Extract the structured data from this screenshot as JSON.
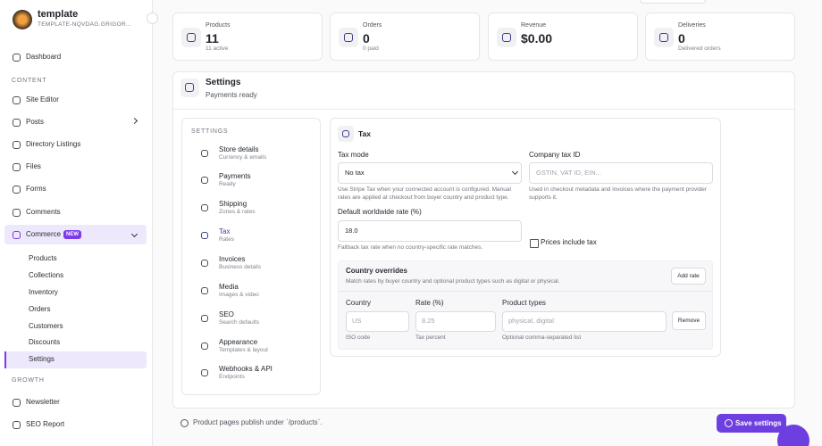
{
  "sidebar": {
    "site_name": "template",
    "site_slug": "TEMPLATE-NQVDAG.GRIGOR...",
    "dashboard": "Dashboard",
    "content_heading": "CONTENT",
    "content_items": [
      "Site Editor",
      "Posts",
      "Directory Listings",
      "Files",
      "Forms",
      "Comments"
    ],
    "commerce": "Commerce",
    "commerce_badge": "NEW",
    "commerce_items": [
      "Products",
      "Collections",
      "Inventory",
      "Orders",
      "Customers",
      "Discounts",
      "Settings"
    ],
    "growth_heading": "GROWTH",
    "growth_items": [
      "Newsletter",
      "SEO Report"
    ]
  },
  "stats": [
    {
      "label": "Products",
      "value": "11",
      "note": "11 active"
    },
    {
      "label": "Orders",
      "value": "0",
      "note": "0 paid"
    },
    {
      "label": "Revenue",
      "value": "$0.00"
    },
    {
      "label": "Deliveries",
      "value": "0",
      "note": "Delivered orders"
    }
  ],
  "settings": {
    "title": "Settings",
    "status": "Payments ready",
    "nav_heading": "SETTINGS",
    "nav": [
      {
        "label": "Store details",
        "sub": "Currency & emails"
      },
      {
        "label": "Payments",
        "sub": "Ready"
      },
      {
        "label": "Shipping",
        "sub": "Zones & rates"
      },
      {
        "label": "Tax",
        "sub": "Rates"
      },
      {
        "label": "Invoices",
        "sub": "Business details"
      },
      {
        "label": "Media",
        "sub": "Images & video"
      },
      {
        "label": "SEO",
        "sub": "Search defaults"
      },
      {
        "label": "Appearance",
        "sub": "Templates & layout"
      },
      {
        "label": "Webhooks & API",
        "sub": "Endpoints"
      }
    ]
  },
  "tax": {
    "title": "Tax",
    "tax_mode_label": "Tax mode",
    "tax_mode_value": "No tax",
    "tax_mode_help": "Use Stripe Tax when your connected account is configured. Manual rates are applied at checkout from buyer country and product type.",
    "company_label": "Company tax ID",
    "company_placeholder": "GSTIN, VAT ID, EIN...",
    "company_help": "Used in checkout metadata and invoices where the payment provider supports it.",
    "rate_label": "Default worldwide rate (%)",
    "rate_value": "18.0",
    "rate_help": "Fallback tax rate when no country-specific rate matches.",
    "prices_include": "Prices include tax",
    "overrides": {
      "title": "Country overrides",
      "subtitle": "Match rates by buyer country and optional product types such as digital or physical.",
      "add_button": "Add rate",
      "columns": [
        {
          "label": "Country",
          "placeholder": "US",
          "help": "ISO code"
        },
        {
          "label": "Rate (%)",
          "placeholder": "8.25",
          "help": "Tax percent"
        },
        {
          "label": "Product types",
          "placeholder": "physical, digital",
          "help": "Optional comma-separated list"
        }
      ],
      "remove": "Remove"
    }
  },
  "footer": {
    "note": "Product pages publish under `/products`.",
    "save": "Save settings"
  }
}
